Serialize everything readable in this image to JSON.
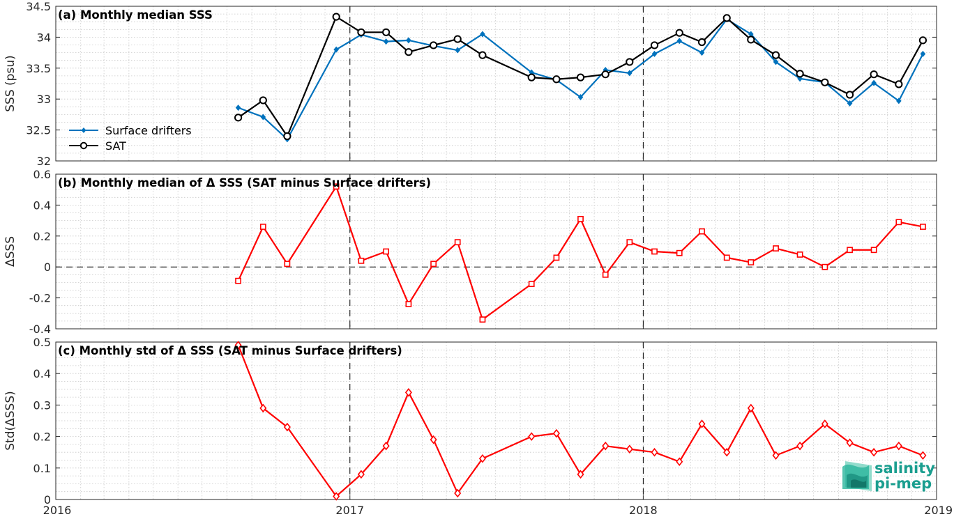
{
  "colors": {
    "drifters": "#0072BD",
    "sat": "#000000",
    "delta": "#FF0000",
    "grid": "#c8c8c8",
    "logo": "#1a9e8f"
  },
  "logo": {
    "line1": "salinity",
    "line2": "pi-mep"
  },
  "x_axis": {
    "range": [
      "2016-01-01",
      "2019-01-01"
    ],
    "tick_labels": [
      "2016",
      "2017",
      "2018",
      "2019"
    ]
  },
  "chart_data": [
    {
      "type": "line",
      "title": "(a) Monthly median SSS",
      "ylabel": "SSS (psu)",
      "ylim": [
        32,
        34.5
      ],
      "yticks": [
        "32",
        "32.5",
        "33",
        "33.5",
        "34",
        "34.5"
      ],
      "legend_placement": "left",
      "grid": true,
      "x": [
        "2016-08-15",
        "2016-09-15",
        "2016-10-15",
        "2016-12-15",
        "2017-01-15",
        "2017-02-15",
        "2017-03-15",
        "2017-04-15",
        "2017-05-15",
        "2017-06-15",
        "2017-08-15",
        "2017-09-15",
        "2017-10-15",
        "2017-11-15",
        "2017-12-15",
        "2018-01-15",
        "2018-02-15",
        "2018-03-15",
        "2018-04-15",
        "2018-05-15",
        "2018-06-15",
        "2018-07-15",
        "2018-08-15",
        "2018-09-15",
        "2018-10-15",
        "2018-11-15",
        "2018-12-15"
      ],
      "series": [
        {
          "name": "Surface drifters",
          "marker": "diamond",
          "values": [
            32.86,
            32.71,
            32.35,
            33.8,
            34.04,
            33.93,
            33.95,
            33.86,
            33.79,
            34.05,
            33.43,
            33.31,
            33.03,
            33.47,
            33.42,
            33.73,
            33.94,
            33.75,
            34.29,
            34.05,
            33.6,
            33.33,
            33.27,
            32.93,
            33.26,
            32.97,
            33.73
          ]
        },
        {
          "name": "SAT",
          "marker": "circle",
          "values": [
            32.7,
            32.98,
            32.4,
            34.33,
            34.08,
            34.08,
            33.76,
            33.87,
            33.97,
            33.71,
            33.35,
            33.32,
            33.35,
            33.4,
            33.6,
            33.87,
            34.07,
            33.92,
            34.31,
            33.96,
            33.71,
            33.41,
            33.27,
            33.07,
            33.4,
            33.24,
            33.95
          ]
        }
      ]
    },
    {
      "type": "line",
      "title": "(b) Monthly median of Δ SSS (SAT minus Surface drifters)",
      "ylabel": "ΔSSS",
      "ylim": [
        -0.4,
        0.6
      ],
      "yticks": [
        "-0.4",
        "-0.2",
        "0",
        "0.2",
        "0.4",
        "0.6"
      ],
      "zero_line": true,
      "grid": true,
      "x": [
        "2016-08-15",
        "2016-09-15",
        "2016-10-15",
        "2016-12-15",
        "2017-01-15",
        "2017-02-15",
        "2017-03-15",
        "2017-04-15",
        "2017-05-15",
        "2017-06-15",
        "2017-08-15",
        "2017-09-15",
        "2017-10-15",
        "2017-11-15",
        "2017-12-15",
        "2018-01-15",
        "2018-02-15",
        "2018-03-15",
        "2018-04-15",
        "2018-05-15",
        "2018-06-15",
        "2018-07-15",
        "2018-08-15",
        "2018-09-15",
        "2018-10-15",
        "2018-11-15",
        "2018-12-15"
      ],
      "series": [
        {
          "marker": "square",
          "values": [
            -0.09,
            0.26,
            0.02,
            0.52,
            0.04,
            0.1,
            -0.24,
            0.02,
            0.16,
            -0.34,
            -0.11,
            0.06,
            0.31,
            -0.05,
            0.16,
            0.1,
            0.09,
            0.23,
            0.06,
            0.03,
            0.12,
            0.08,
            0.0,
            0.11,
            0.11,
            0.29,
            0.26
          ]
        }
      ]
    },
    {
      "type": "line",
      "title": "(c) Monthly std of Δ SSS (SAT minus Surface drifters)",
      "ylabel": "Std(ΔSSS)",
      "ylim": [
        0,
        0.5
      ],
      "yticks": [
        "0",
        "0.1",
        "0.2",
        "0.3",
        "0.4",
        "0.5"
      ],
      "grid": true,
      "x": [
        "2016-08-15",
        "2016-09-15",
        "2016-10-15",
        "2016-12-15",
        "2017-01-15",
        "2017-02-15",
        "2017-03-15",
        "2017-04-15",
        "2017-05-15",
        "2017-06-15",
        "2017-08-15",
        "2017-09-15",
        "2017-10-15",
        "2017-11-15",
        "2017-12-15",
        "2018-01-15",
        "2018-02-15",
        "2018-03-15",
        "2018-04-15",
        "2018-05-15",
        "2018-06-15",
        "2018-07-15",
        "2018-08-15",
        "2018-09-15",
        "2018-10-15",
        "2018-11-15",
        "2018-12-15"
      ],
      "series": [
        {
          "marker": "diamond",
          "values": [
            0.49,
            0.29,
            0.23,
            0.01,
            0.08,
            0.17,
            0.34,
            0.19,
            0.02,
            0.13,
            0.2,
            0.21,
            0.08,
            0.17,
            0.16,
            0.15,
            0.12,
            0.24,
            0.15,
            0.29,
            0.14,
            0.17,
            0.24,
            0.18,
            0.15,
            0.17,
            0.14
          ]
        }
      ]
    }
  ]
}
